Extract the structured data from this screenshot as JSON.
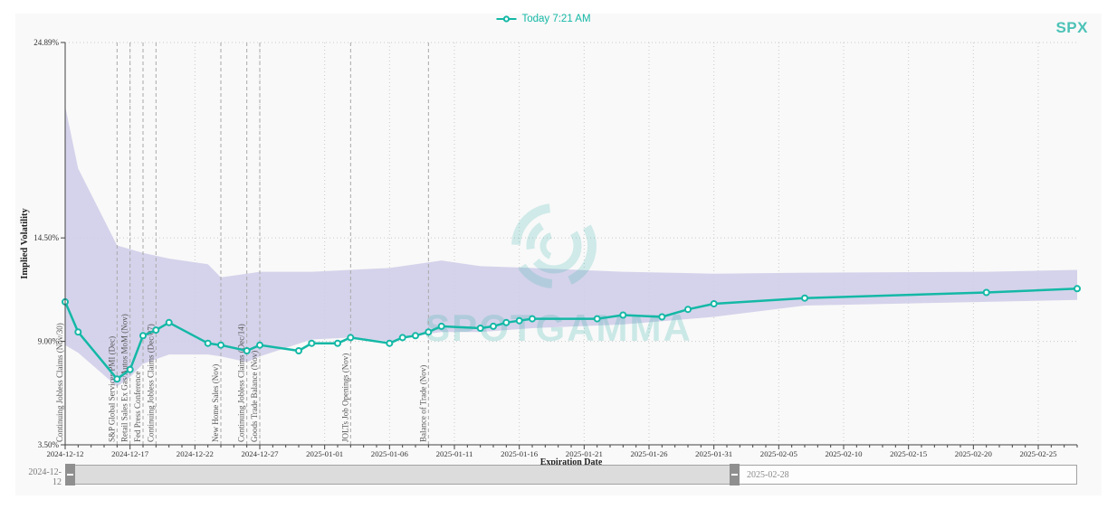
{
  "header": {
    "legend_label": "Today 7:21 AM",
    "symbol": "SPX"
  },
  "watermark": {
    "text": "SPOTGAMMA"
  },
  "colors": {
    "accent": "#14b8a6",
    "symbol_color": "#4cc2b7",
    "band_fill": "#cfcde9",
    "watermark": "#3ab5ab",
    "axis": "#444444",
    "tick_text": "#333333",
    "event_line": "#a8a8a8",
    "event_text": "#555555",
    "grid": "#c9c9c9",
    "slider_handle": "#8f8f8f"
  },
  "slider": {
    "start_label": "2024-12-12",
    "end_label": "2025-02-28"
  },
  "chart_data": {
    "type": "line",
    "title": "",
    "xlabel": "Expiration Date",
    "ylabel": "Implied Volatility",
    "grid": true,
    "legend_position": "top-center",
    "ylim": [
      3.5,
      24.89
    ],
    "y_ticks": [
      {
        "label": "24.89%",
        "value": 24.89
      },
      {
        "label": "14.50%",
        "value": 14.5
      },
      {
        "label": "9.00%",
        "value": 9.0
      },
      {
        "label": "3.50%",
        "value": 3.5
      }
    ],
    "x_range": [
      "2024-12-12",
      "2025-02-28"
    ],
    "x_tick_labels": [
      "2024-12-12",
      "2024-12-17",
      "2024-12-22",
      "2024-12-27",
      "2025-01-01",
      "2025-01-06",
      "2025-01-11",
      "2025-01-16",
      "2025-01-21",
      "2025-01-26",
      "2025-01-31",
      "2025-02-05",
      "2025-02-10",
      "2025-02-15",
      "2025-02-20",
      "2025-02-25"
    ],
    "series": [
      {
        "name": "Today 7:21 AM",
        "points": [
          [
            "2024-12-12",
            11.1
          ],
          [
            "2024-12-13",
            9.5
          ],
          [
            "2024-12-16",
            7.0
          ],
          [
            "2024-12-17",
            7.5
          ],
          [
            "2024-12-18",
            9.3
          ],
          [
            "2024-12-19",
            9.6
          ],
          [
            "2024-12-20",
            10.0
          ],
          [
            "2024-12-23",
            8.9
          ],
          [
            "2024-12-24",
            8.8
          ],
          [
            "2024-12-26",
            8.5
          ],
          [
            "2024-12-27",
            8.8
          ],
          [
            "2024-12-30",
            8.5
          ],
          [
            "2024-12-31",
            8.9
          ],
          [
            "2025-01-02",
            8.9
          ],
          [
            "2025-01-03",
            9.2
          ],
          [
            "2025-01-06",
            8.9
          ],
          [
            "2025-01-07",
            9.2
          ],
          [
            "2025-01-08",
            9.3
          ],
          [
            "2025-01-09",
            9.5
          ],
          [
            "2025-01-10",
            9.8
          ],
          [
            "2025-01-13",
            9.7
          ],
          [
            "2025-01-14",
            9.8
          ],
          [
            "2025-01-15",
            10.0
          ],
          [
            "2025-01-16",
            10.1
          ],
          [
            "2025-01-17",
            10.2
          ],
          [
            "2025-01-22",
            10.2
          ],
          [
            "2025-01-24",
            10.4
          ],
          [
            "2025-01-27",
            10.3
          ],
          [
            "2025-01-29",
            10.7
          ],
          [
            "2025-01-31",
            11.0
          ],
          [
            "2025-02-07",
            11.3
          ],
          [
            "2025-02-21",
            11.6
          ],
          [
            "2025-02-28",
            11.8
          ]
        ]
      }
    ],
    "band": {
      "name": "implied-volatility-range-band",
      "points": [
        [
          "2024-12-12",
          8.8,
          21.5
        ],
        [
          "2024-12-13",
          8.4,
          18.2
        ],
        [
          "2024-12-16",
          6.6,
          14.1
        ],
        [
          "2024-12-17",
          7.1,
          13.9
        ],
        [
          "2024-12-18",
          7.8,
          13.7
        ],
        [
          "2024-12-20",
          8.3,
          13.4
        ],
        [
          "2024-12-23",
          8.3,
          13.1
        ],
        [
          "2024-12-24",
          8.2,
          12.4
        ],
        [
          "2024-12-26",
          7.9,
          12.6
        ],
        [
          "2024-12-27",
          8.2,
          12.7
        ],
        [
          "2024-12-31",
          9.1,
          12.7
        ],
        [
          "2025-01-03",
          9.2,
          12.8
        ],
        [
          "2025-01-06",
          9.0,
          12.9
        ],
        [
          "2025-01-09",
          9.4,
          13.2
        ],
        [
          "2025-01-10",
          9.5,
          13.3
        ],
        [
          "2025-01-13",
          9.5,
          13.0
        ],
        [
          "2025-01-17",
          9.7,
          12.9
        ],
        [
          "2025-01-24",
          9.9,
          12.7
        ],
        [
          "2025-01-31",
          10.3,
          12.6
        ],
        [
          "2025-02-07",
          10.9,
          12.65
        ],
        [
          "2025-02-21",
          11.1,
          12.7
        ],
        [
          "2025-02-28",
          11.2,
          12.8
        ]
      ]
    },
    "events": [
      {
        "date": "2024-12-12",
        "label": "Continuing Jobless Claims (Nov/30)"
      },
      {
        "date": "2024-12-16",
        "label": "S&P Global Services PMI (Dec)"
      },
      {
        "date": "2024-12-17",
        "label": "Retail Sales Ex Gas/Autos MoM (Nov)"
      },
      {
        "date": "2024-12-18",
        "label": "Fed Press Conference"
      },
      {
        "date": "2024-12-19",
        "label": "Continuing Jobless Claims (Dec/07)"
      },
      {
        "date": "2024-12-24",
        "label": "New Home Sales (Nov)"
      },
      {
        "date": "2024-12-26",
        "label": "Continuing Jobless Claims (Dec/14)"
      },
      {
        "date": "2024-12-27",
        "label": "Goods Trade Balance (Nov)"
      },
      {
        "date": "2025-01-03",
        "label": "JOLTs Job Openings (Nov)"
      },
      {
        "date": "2025-01-09",
        "label": "Balance of Trade (Nov)"
      }
    ]
  }
}
